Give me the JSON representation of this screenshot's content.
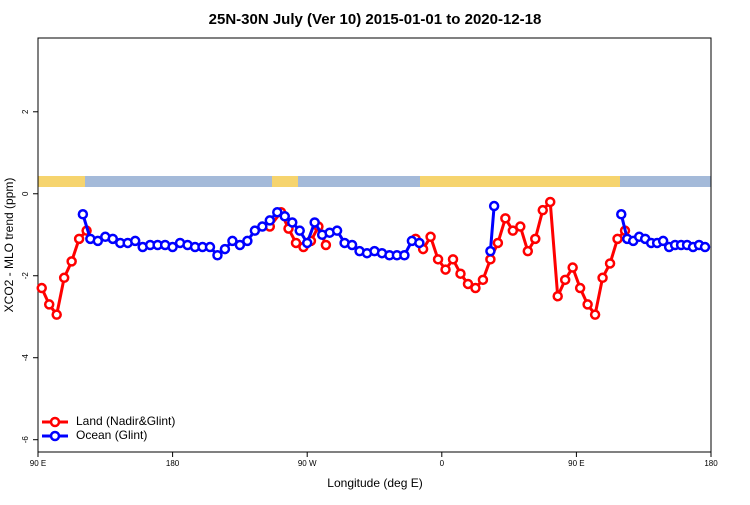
{
  "chart_data": {
    "type": "line",
    "title": "25N-30N July (Ver 10)   2015-01-01 to 2020-12-18",
    "x_label": "Longitude (deg E)",
    "y_label": "XCO2 - MLO trend (ppm)",
    "xlim": [
      90,
      540
    ],
    "ylim": [
      -6.3,
      3.8
    ],
    "xticks": [
      {
        "value": 90,
        "label": "90 E"
      },
      {
        "value": 180,
        "label": "180"
      },
      {
        "value": 270,
        "label": "90 W"
      },
      {
        "value": 360,
        "label": "0"
      },
      {
        "value": 450,
        "label": "90 E"
      },
      {
        "value": 540,
        "label": "180"
      }
    ],
    "yticks": [
      -6,
      -4,
      -2,
      0,
      2
    ],
    "legend": "bottom-left",
    "series": [
      {
        "name": "Land (Nadir&Glint)",
        "color": "#ff0000",
        "x": [
          92.5,
          97.5,
          102.5,
          107.5,
          112.5,
          117.5,
          122.5,
          180,
          245,
          252.5,
          257.5,
          262.5,
          267.5,
          272.5,
          277.5,
          282.5,
          310,
          342.5,
          347.5,
          352.5,
          357.5,
          362.5,
          367.5,
          372.5,
          377.5,
          382.5,
          387.5,
          392.5,
          397.5,
          402.5,
          407.5,
          412.5,
          417.5,
          422.5,
          427.5,
          432.5,
          437.5,
          442.5,
          447.5,
          452.5,
          457.5,
          462.5,
          467.5,
          472.5,
          477.5,
          482.5
        ],
        "values": [
          -2.3,
          -2.7,
          -2.95,
          -2.05,
          -1.65,
          -1.1,
          -0.9,
          null,
          -0.8,
          -0.45,
          -0.85,
          -1.2,
          -1.3,
          -1.15,
          -0.8,
          -1.25,
          null,
          -1.1,
          -1.35,
          -1.05,
          -1.6,
          -1.85,
          -1.6,
          -1.95,
          -2.2,
          -2.3,
          -2.1,
          -1.6,
          -1.2,
          -0.6,
          -0.9,
          -0.8,
          -1.4,
          -1.1,
          -0.4,
          -0.2,
          -2.5,
          -2.1,
          -1.8,
          -2.3,
          -2.7,
          -2.95,
          -2.05,
          -1.7,
          -1.1,
          -0.9
        ]
      },
      {
        "name": "Ocean (Glint)",
        "color": "#0000ff",
        "x": [
          120,
          125,
          130,
          135,
          140,
          145,
          150,
          155,
          160,
          165,
          170,
          175,
          180,
          185,
          190,
          195,
          200,
          205,
          210,
          215,
          220,
          225,
          230,
          235,
          240,
          245,
          250,
          255,
          260,
          265,
          270,
          275,
          280,
          285,
          290,
          295,
          300,
          305,
          310,
          315,
          320,
          325,
          330,
          335,
          340,
          345,
          370,
          392.5,
          395,
          440,
          480,
          484,
          488,
          492,
          496,
          500,
          504,
          508,
          512,
          516,
          520,
          524,
          528,
          532,
          536
        ],
        "values": [
          -0.5,
          -1.1,
          -1.15,
          -1.05,
          -1.1,
          -1.2,
          -1.2,
          -1.15,
          -1.3,
          -1.25,
          -1.25,
          -1.25,
          -1.3,
          -1.2,
          -1.25,
          -1.3,
          -1.3,
          -1.3,
          -1.5,
          -1.35,
          -1.15,
          -1.25,
          -1.15,
          -0.9,
          -0.8,
          -0.65,
          -0.45,
          -0.55,
          -0.7,
          -0.9,
          -1.2,
          -0.7,
          -1.0,
          -0.95,
          -0.9,
          -1.2,
          -1.25,
          -1.4,
          -1.45,
          -1.4,
          -1.45,
          -1.5,
          -1.5,
          -1.5,
          -1.15,
          -1.2,
          null,
          -1.4,
          -0.3,
          null,
          -0.5,
          -1.1,
          -1.15,
          -1.05,
          -1.1,
          -1.2,
          -1.2,
          -1.15,
          -1.3,
          -1.25,
          -1.25,
          -1.25,
          -1.3,
          -1.25,
          -1.3
        ]
      }
    ]
  }
}
